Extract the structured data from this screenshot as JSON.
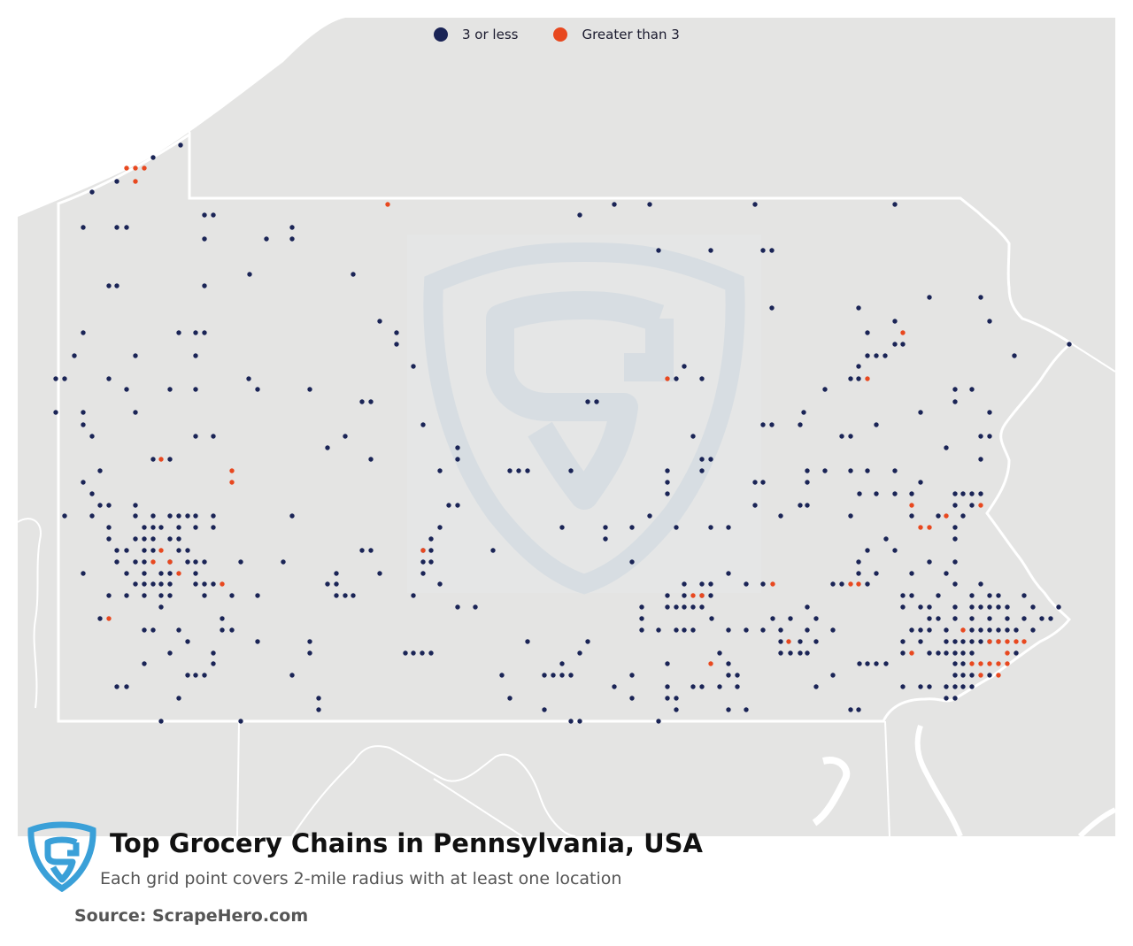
{
  "legend": {
    "items": [
      {
        "label": "3 or less",
        "color": "#1a2456"
      },
      {
        "label": "Greater than 3",
        "color": "#e8481f"
      }
    ]
  },
  "title": "Top Grocery Chains in Pennsylvania, USA",
  "subtitle": "Each grid point covers 2-mile radius with at least one location",
  "source": "Source: ScrapeHero.com",
  "colors": {
    "land": "#e4e4e3",
    "border": "#ffffff",
    "low": "#1a2456",
    "high": "#e8481f",
    "watermark": "#cdd9e2",
    "logo": "#3aa0d8"
  },
  "icons": {
    "logo": "scrapehero-shield-logo",
    "watermark": "scrapehero-shield-watermark"
  },
  "points_low": [
    [
      204,
      164
    ],
    [
      173,
      178
    ],
    [
      132,
      205
    ],
    [
      104,
      217
    ],
    [
      231,
      243
    ],
    [
      241,
      243
    ],
    [
      94,
      257
    ],
    [
      132,
      257
    ],
    [
      143,
      257
    ],
    [
      231,
      270
    ],
    [
      301,
      270
    ],
    [
      330,
      257
    ],
    [
      330,
      270
    ],
    [
      282,
      310
    ],
    [
      399,
      310
    ],
    [
      123,
      323
    ],
    [
      132,
      323
    ],
    [
      231,
      323
    ],
    [
      94,
      376
    ],
    [
      202,
      376
    ],
    [
      221,
      376
    ],
    [
      231,
      376
    ],
    [
      84,
      402
    ],
    [
      221,
      402
    ],
    [
      153,
      402
    ],
    [
      63,
      428
    ],
    [
      73,
      428
    ],
    [
      123,
      428
    ],
    [
      281,
      428
    ],
    [
      143,
      440
    ],
    [
      192,
      440
    ],
    [
      221,
      440
    ],
    [
      291,
      440
    ],
    [
      350,
      440
    ],
    [
      409,
      454
    ],
    [
      419,
      454
    ],
    [
      429,
      363
    ],
    [
      448,
      376
    ],
    [
      448,
      389
    ],
    [
      467,
      414
    ],
    [
      63,
      466
    ],
    [
      94,
      466
    ],
    [
      153,
      466
    ],
    [
      94,
      480
    ],
    [
      104,
      493
    ],
    [
      221,
      493
    ],
    [
      241,
      493
    ],
    [
      390,
      493
    ],
    [
      370,
      506
    ],
    [
      173,
      519
    ],
    [
      192,
      519
    ],
    [
      419,
      519
    ],
    [
      113,
      532
    ],
    [
      94,
      545
    ],
    [
      104,
      558
    ],
    [
      113,
      571
    ],
    [
      123,
      571
    ],
    [
      73,
      583
    ],
    [
      104,
      583
    ],
    [
      153,
      571
    ],
    [
      153,
      583
    ],
    [
      173,
      583
    ],
    [
      192,
      583
    ],
    [
      202,
      583
    ],
    [
      212,
      583
    ],
    [
      221,
      583
    ],
    [
      241,
      583
    ],
    [
      330,
      583
    ],
    [
      123,
      596
    ],
    [
      163,
      596
    ],
    [
      173,
      596
    ],
    [
      182,
      596
    ],
    [
      202,
      596
    ],
    [
      221,
      596
    ],
    [
      241,
      596
    ],
    [
      123,
      609
    ],
    [
      153,
      609
    ],
    [
      163,
      609
    ],
    [
      173,
      609
    ],
    [
      192,
      609
    ],
    [
      202,
      609
    ],
    [
      132,
      622
    ],
    [
      143,
      622
    ],
    [
      163,
      622
    ],
    [
      173,
      622
    ],
    [
      202,
      622
    ],
    [
      212,
      622
    ],
    [
      132,
      635
    ],
    [
      153,
      635
    ],
    [
      163,
      635
    ],
    [
      192,
      635
    ],
    [
      212,
      635
    ],
    [
      221,
      635
    ],
    [
      231,
      635
    ],
    [
      272,
      635
    ],
    [
      320,
      635
    ],
    [
      94,
      648
    ],
    [
      143,
      648
    ],
    [
      163,
      648
    ],
    [
      182,
      648
    ],
    [
      192,
      648
    ],
    [
      221,
      648
    ],
    [
      153,
      660
    ],
    [
      163,
      660
    ],
    [
      173,
      660
    ],
    [
      182,
      660
    ],
    [
      192,
      660
    ],
    [
      221,
      660
    ],
    [
      231,
      660
    ],
    [
      241,
      660
    ],
    [
      123,
      673
    ],
    [
      143,
      673
    ],
    [
      163,
      673
    ],
    [
      182,
      673
    ],
    [
      192,
      673
    ],
    [
      231,
      673
    ],
    [
      262,
      673
    ],
    [
      291,
      673
    ],
    [
      182,
      686
    ],
    [
      113,
      699
    ],
    [
      251,
      699
    ],
    [
      163,
      712
    ],
    [
      173,
      712
    ],
    [
      202,
      712
    ],
    [
      251,
      712
    ],
    [
      262,
      712
    ],
    [
      212,
      725
    ],
    [
      291,
      725
    ],
    [
      192,
      738
    ],
    [
      241,
      738
    ],
    [
      350,
      725
    ],
    [
      350,
      738
    ],
    [
      163,
      750
    ],
    [
      241,
      750
    ],
    [
      212,
      763
    ],
    [
      221,
      763
    ],
    [
      231,
      763
    ],
    [
      330,
      763
    ],
    [
      132,
      776
    ],
    [
      143,
      776
    ],
    [
      202,
      789
    ],
    [
      360,
      789
    ],
    [
      360,
      802
    ],
    [
      182,
      815
    ],
    [
      272,
      815
    ],
    [
      409,
      622
    ],
    [
      419,
      622
    ],
    [
      429,
      648
    ],
    [
      380,
      648
    ],
    [
      370,
      660
    ],
    [
      380,
      660
    ],
    [
      380,
      673
    ],
    [
      390,
      673
    ],
    [
      399,
      673
    ],
    [
      467,
      673
    ],
    [
      458,
      738
    ],
    [
      467,
      738
    ],
    [
      477,
      738
    ],
    [
      487,
      738
    ],
    [
      478,
      622
    ],
    [
      487,
      622
    ],
    [
      478,
      635
    ],
    [
      487,
      635
    ],
    [
      478,
      648
    ],
    [
      497,
      660
    ],
    [
      497,
      596
    ],
    [
      487,
      609
    ],
    [
      507,
      571
    ],
    [
      517,
      571
    ],
    [
      517,
      506
    ],
    [
      517,
      519
    ],
    [
      497,
      532
    ],
    [
      478,
      480
    ],
    [
      517,
      686
    ],
    [
      537,
      686
    ],
    [
      557,
      622
    ],
    [
      576,
      532
    ],
    [
      586,
      532
    ],
    [
      596,
      532
    ],
    [
      645,
      532
    ],
    [
      664,
      454
    ],
    [
      674,
      454
    ],
    [
      655,
      243
    ],
    [
      694,
      231
    ],
    [
      734,
      231
    ],
    [
      744,
      283
    ],
    [
      803,
      283
    ],
    [
      862,
      283
    ],
    [
      872,
      283
    ],
    [
      853,
      231
    ],
    [
      1011,
      231
    ],
    [
      773,
      414
    ],
    [
      764,
      428
    ],
    [
      793,
      428
    ],
    [
      754,
      532
    ],
    [
      754,
      545
    ],
    [
      754,
      558
    ],
    [
      793,
      519
    ],
    [
      803,
      519
    ],
    [
      793,
      532
    ],
    [
      783,
      493
    ],
    [
      862,
      480
    ],
    [
      872,
      480
    ],
    [
      908,
      466
    ],
    [
      904,
      480
    ],
    [
      853,
      545
    ],
    [
      862,
      545
    ],
    [
      872,
      348
    ],
    [
      932,
      440
    ],
    [
      970,
      348
    ],
    [
      980,
      376
    ],
    [
      970,
      414
    ],
    [
      961,
      428
    ],
    [
      970,
      428
    ],
    [
      980,
      402
    ],
    [
      990,
      402
    ],
    [
      1000,
      402
    ],
    [
      1011,
      363
    ],
    [
      1011,
      389
    ],
    [
      1020,
      389
    ],
    [
      1050,
      336
    ],
    [
      1108,
      336
    ],
    [
      1118,
      363
    ],
    [
      1146,
      402
    ],
    [
      1208,
      389
    ],
    [
      1040,
      466
    ],
    [
      1079,
      440
    ],
    [
      1098,
      440
    ],
    [
      1079,
      454
    ],
    [
      1118,
      466
    ],
    [
      1108,
      493
    ],
    [
      1118,
      493
    ],
    [
      1069,
      506
    ],
    [
      1108,
      519
    ],
    [
      1079,
      558
    ],
    [
      1088,
      558
    ],
    [
      1098,
      558
    ],
    [
      1108,
      558
    ],
    [
      1079,
      571
    ],
    [
      1098,
      571
    ],
    [
      1088,
      583
    ],
    [
      1079,
      596
    ],
    [
      1079,
      609
    ],
    [
      1060,
      583
    ],
    [
      1040,
      545
    ],
    [
      951,
      493
    ],
    [
      961,
      493
    ],
    [
      990,
      480
    ],
    [
      912,
      532
    ],
    [
      932,
      532
    ],
    [
      912,
      545
    ],
    [
      961,
      532
    ],
    [
      980,
      532
    ],
    [
      1011,
      532
    ],
    [
      971,
      558
    ],
    [
      990,
      558
    ],
    [
      1011,
      558
    ],
    [
      1030,
      558
    ],
    [
      904,
      571
    ],
    [
      912,
      571
    ],
    [
      853,
      571
    ],
    [
      882,
      583
    ],
    [
      961,
      583
    ],
    [
      1030,
      583
    ],
    [
      1001,
      609
    ],
    [
      1011,
      622
    ],
    [
      980,
      622
    ],
    [
      970,
      635
    ],
    [
      1050,
      635
    ],
    [
      1079,
      635
    ],
    [
      970,
      648
    ],
    [
      990,
      648
    ],
    [
      1030,
      648
    ],
    [
      1069,
      648
    ],
    [
      1079,
      660
    ],
    [
      1108,
      660
    ],
    [
      941,
      660
    ],
    [
      951,
      660
    ],
    [
      980,
      660
    ],
    [
      1020,
      673
    ],
    [
      1030,
      673
    ],
    [
      1060,
      673
    ],
    [
      1098,
      673
    ],
    [
      1118,
      673
    ],
    [
      1128,
      673
    ],
    [
      1157,
      673
    ],
    [
      1020,
      686
    ],
    [
      1040,
      686
    ],
    [
      1050,
      686
    ],
    [
      1079,
      686
    ],
    [
      1098,
      686
    ],
    [
      1108,
      686
    ],
    [
      1118,
      686
    ],
    [
      1128,
      686
    ],
    [
      1138,
      686
    ],
    [
      1167,
      686
    ],
    [
      1196,
      686
    ],
    [
      1050,
      699
    ],
    [
      1060,
      699
    ],
    [
      1079,
      699
    ],
    [
      1098,
      699
    ],
    [
      1118,
      699
    ],
    [
      1138,
      699
    ],
    [
      1157,
      699
    ],
    [
      1177,
      699
    ],
    [
      1187,
      699
    ],
    [
      1030,
      712
    ],
    [
      1040,
      712
    ],
    [
      1050,
      712
    ],
    [
      1069,
      712
    ],
    [
      1098,
      712
    ],
    [
      1108,
      712
    ],
    [
      1118,
      712
    ],
    [
      1128,
      712
    ],
    [
      1138,
      712
    ],
    [
      1148,
      712
    ],
    [
      1167,
      712
    ],
    [
      1020,
      725
    ],
    [
      1040,
      725
    ],
    [
      1069,
      725
    ],
    [
      1079,
      725
    ],
    [
      1088,
      725
    ],
    [
      1098,
      725
    ],
    [
      1108,
      725
    ],
    [
      1118,
      725
    ],
    [
      1128,
      725
    ],
    [
      1020,
      738
    ],
    [
      1050,
      738
    ],
    [
      1060,
      738
    ],
    [
      1069,
      738
    ],
    [
      1079,
      738
    ],
    [
      1088,
      738
    ],
    [
      1098,
      738
    ],
    [
      1148,
      738
    ],
    [
      971,
      750
    ],
    [
      980,
      750
    ],
    [
      990,
      750
    ],
    [
      1001,
      750
    ],
    [
      1079,
      750
    ],
    [
      1088,
      750
    ],
    [
      1079,
      763
    ],
    [
      1088,
      763
    ],
    [
      1098,
      763
    ],
    [
      1079,
      776
    ],
    [
      1088,
      776
    ],
    [
      1098,
      776
    ],
    [
      1118,
      763
    ],
    [
      1040,
      776
    ],
    [
      1050,
      776
    ],
    [
      1020,
      776
    ],
    [
      1069,
      776
    ],
    [
      1069,
      789
    ],
    [
      1079,
      789
    ],
    [
      961,
      802
    ],
    [
      970,
      802
    ],
    [
      941,
      763
    ],
    [
      922,
      776
    ],
    [
      912,
      738
    ],
    [
      904,
      738
    ],
    [
      882,
      725
    ],
    [
      882,
      738
    ],
    [
      893,
      738
    ],
    [
      904,
      725
    ],
    [
      922,
      725
    ],
    [
      941,
      712
    ],
    [
      862,
      712
    ],
    [
      882,
      712
    ],
    [
      912,
      712
    ],
    [
      912,
      686
    ],
    [
      922,
      699
    ],
    [
      893,
      699
    ],
    [
      873,
      699
    ],
    [
      843,
      712
    ],
    [
      823,
      712
    ],
    [
      804,
      699
    ],
    [
      793,
      686
    ],
    [
      783,
      686
    ],
    [
      773,
      686
    ],
    [
      764,
      686
    ],
    [
      773,
      673
    ],
    [
      754,
      673
    ],
    [
      754,
      686
    ],
    [
      725,
      686
    ],
    [
      725,
      699
    ],
    [
      725,
      712
    ],
    [
      744,
      712
    ],
    [
      764,
      712
    ],
    [
      773,
      712
    ],
    [
      783,
      712
    ],
    [
      793,
      673
    ],
    [
      803,
      673
    ],
    [
      803,
      660
    ],
    [
      793,
      660
    ],
    [
      773,
      660
    ],
    [
      823,
      648
    ],
    [
      843,
      660
    ],
    [
      862,
      660
    ],
    [
      813,
      738
    ],
    [
      823,
      750
    ],
    [
      823,
      763
    ],
    [
      833,
      763
    ],
    [
      833,
      776
    ],
    [
      813,
      776
    ],
    [
      793,
      776
    ],
    [
      783,
      776
    ],
    [
      754,
      776
    ],
    [
      754,
      789
    ],
    [
      764,
      789
    ],
    [
      764,
      802
    ],
    [
      744,
      815
    ],
    [
      823,
      802
    ],
    [
      843,
      802
    ],
    [
      754,
      750
    ],
    [
      714,
      763
    ],
    [
      714,
      789
    ],
    [
      694,
      776
    ],
    [
      655,
      738
    ],
    [
      635,
      750
    ],
    [
      645,
      763
    ],
    [
      635,
      763
    ],
    [
      625,
      763
    ],
    [
      615,
      763
    ],
    [
      596,
      725
    ],
    [
      567,
      763
    ],
    [
      576,
      789
    ],
    [
      615,
      802
    ],
    [
      645,
      815
    ],
    [
      655,
      815
    ],
    [
      664,
      725
    ],
    [
      714,
      635
    ],
    [
      684,
      596
    ],
    [
      684,
      609
    ],
    [
      714,
      596
    ],
    [
      734,
      583
    ],
    [
      764,
      596
    ],
    [
      803,
      596
    ],
    [
      823,
      596
    ],
    [
      635,
      596
    ]
  ],
  "points_high": [
    [
      143,
      190
    ],
    [
      153,
      190
    ],
    [
      163,
      190
    ],
    [
      153,
      205
    ],
    [
      438,
      231
    ],
    [
      182,
      519
    ],
    [
      262,
      532
    ],
    [
      262,
      545
    ],
    [
      182,
      622
    ],
    [
      173,
      635
    ],
    [
      192,
      635
    ],
    [
      202,
      648
    ],
    [
      251,
      660
    ],
    [
      123,
      699
    ],
    [
      478,
      622
    ],
    [
      754,
      428
    ],
    [
      783,
      673
    ],
    [
      793,
      673
    ],
    [
      803,
      750
    ],
    [
      873,
      660
    ],
    [
      961,
      660
    ],
    [
      970,
      660
    ],
    [
      891,
      725
    ],
    [
      1020,
      376
    ],
    [
      980,
      428
    ],
    [
      1030,
      571
    ],
    [
      1040,
      596
    ],
    [
      1050,
      596
    ],
    [
      1069,
      583
    ],
    [
      1108,
      571
    ],
    [
      1088,
      712
    ],
    [
      1118,
      725
    ],
    [
      1128,
      725
    ],
    [
      1138,
      725
    ],
    [
      1148,
      725
    ],
    [
      1157,
      725
    ],
    [
      1138,
      738
    ],
    [
      1030,
      738
    ],
    [
      1098,
      750
    ],
    [
      1108,
      750
    ],
    [
      1118,
      750
    ],
    [
      1128,
      750
    ],
    [
      1138,
      750
    ],
    [
      1108,
      763
    ],
    [
      1128,
      763
    ]
  ]
}
